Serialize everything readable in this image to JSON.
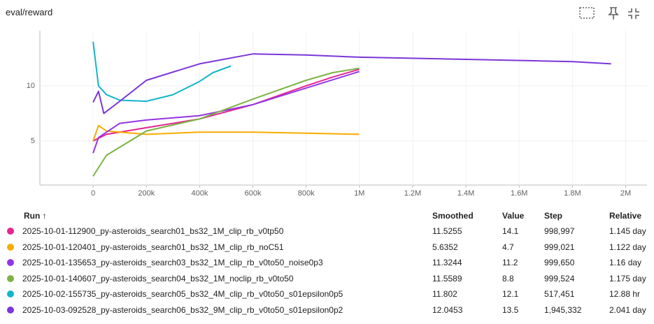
{
  "chart_data": {
    "type": "line",
    "title": "eval/reward",
    "xlim": [
      -200000,
      2080000
    ],
    "ylim": [
      1,
      15
    ],
    "xticks": [
      0,
      {
        "value": 200000,
        "label": "200k"
      },
      {
        "value": 400000,
        "label": "400k"
      },
      {
        "value": 600000,
        "label": "600k"
      },
      {
        "value": 800000,
        "label": "800k"
      },
      {
        "value": 1000000,
        "label": "1M"
      },
      {
        "value": 1200000,
        "label": "1.2M"
      },
      {
        "value": 1400000,
        "label": "1.4M"
      },
      {
        "value": 1600000,
        "label": "1.6M"
      },
      {
        "value": 1800000,
        "label": "1.8M"
      },
      {
        "value": 2000000,
        "label": "2M"
      }
    ],
    "yticks": [
      5,
      10
    ],
    "grid": true,
    "series": [
      {
        "name": "2025-10-01-112900_py-asteroids_search01_bs32_1M_clip_rb_v0tp50",
        "color": "#e52592",
        "x": [
          0,
          50000,
          200000,
          400000,
          600000,
          800000,
          900000,
          998997
        ],
        "values": [
          5.0,
          5.6,
          6.2,
          7.0,
          8.3,
          10.0,
          10.8,
          11.5
        ]
      },
      {
        "name": "2025-10-01-120401_py-asteroids_search01_bs32_1M_clip_rb_noC51",
        "color": "#f9ab00",
        "x": [
          0,
          20000,
          50000,
          200000,
          400000,
          600000,
          800000,
          999021
        ],
        "values": [
          5.0,
          6.4,
          5.9,
          5.6,
          5.8,
          5.8,
          5.7,
          5.6
        ]
      },
      {
        "name": "2025-10-01-135653_py-asteroids_search03_bs32_1M_clip_rb_v0to50_noise0p3",
        "color": "#9334e6",
        "x": [
          0,
          20000,
          100000,
          200000,
          400000,
          600000,
          800000,
          999650
        ],
        "values": [
          3.9,
          5.3,
          6.6,
          6.9,
          7.3,
          8.3,
          9.8,
          11.3
        ]
      },
      {
        "name": "2025-10-01-140607_py-asteroids_search04_bs32_1M_noclip_rb_v0to50",
        "color": "#7cb342",
        "x": [
          0,
          50000,
          200000,
          400000,
          600000,
          800000,
          900000,
          999524
        ],
        "values": [
          1.8,
          3.7,
          5.9,
          7.0,
          8.8,
          10.5,
          11.2,
          11.6
        ]
      },
      {
        "name": "2025-10-02-155735_py-asteroids_search05_bs32_4M_clip_rb_v0to50_s01epsilon0p5",
        "color": "#12b5cb",
        "x": [
          0,
          20000,
          50000,
          100000,
          200000,
          300000,
          400000,
          450000,
          517451
        ],
        "values": [
          14.0,
          10.0,
          9.2,
          8.7,
          8.6,
          9.2,
          10.4,
          11.2,
          11.8
        ]
      },
      {
        "name": "2025-10-03-092528_py-asteroids_search06_bs32_9M_clip_rb_v0to50_s01epsilon0p2",
        "color": "#7b36d9",
        "x": [
          0,
          20000,
          40000,
          100000,
          200000,
          400000,
          600000,
          800000,
          1000000,
          1400000,
          1800000,
          1945332
        ],
        "values": [
          8.5,
          9.5,
          7.5,
          8.6,
          10.5,
          12.0,
          12.9,
          12.8,
          12.6,
          12.4,
          12.2,
          12.0
        ]
      }
    ]
  },
  "table": {
    "headers": [
      "Run ↑",
      "Smoothed",
      "Value",
      "Step",
      "Relative"
    ],
    "rows": [
      [
        "11.5255",
        "14.1",
        "998,997",
        "1.145 day"
      ],
      [
        "5.6352",
        "4.7",
        "999,021",
        "1.122 day"
      ],
      [
        "11.3244",
        "11.2",
        "999,650",
        "1.16 day"
      ],
      [
        "11.5589",
        "8.8",
        "999,524",
        "1.175 day"
      ],
      [
        "11.802",
        "12.1",
        "517,451",
        "12.88 hr"
      ],
      [
        "12.0453",
        "13.5",
        "1,945,332",
        "2.041 day"
      ]
    ]
  }
}
